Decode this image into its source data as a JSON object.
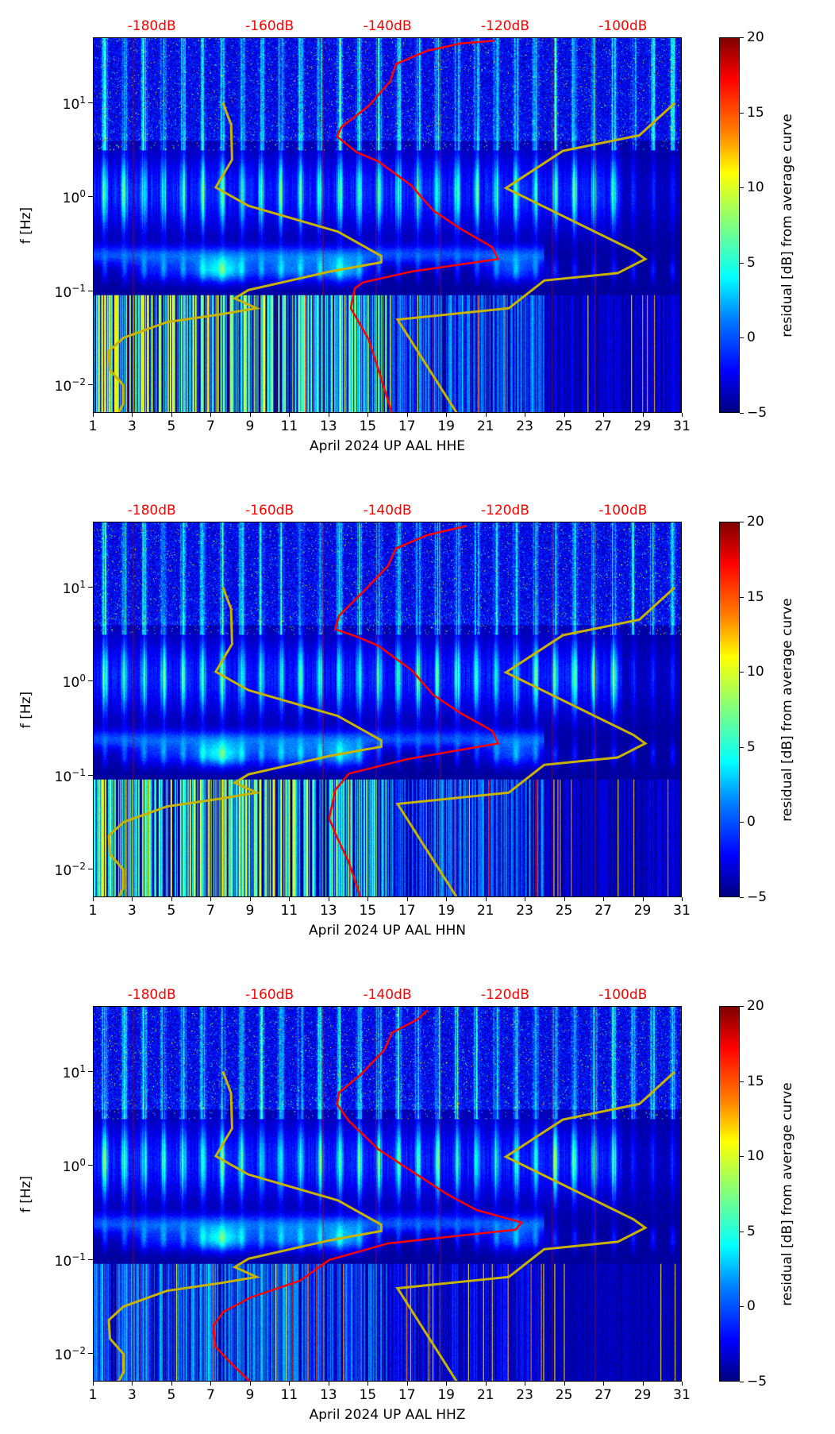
{
  "chart_data": [
    {
      "type": "heatmap",
      "xlabel": "April 2024 UP AAL  HHE",
      "ylabel": "f [Hz]",
      "colorbar_label": "residual [dB] from average curve",
      "top_axis_ticks": [
        "-180dB",
        "-160dB",
        "-140dB",
        "-120dB",
        "-100dB"
      ],
      "x_ticks": [
        "1",
        "3",
        "5",
        "7",
        "9",
        "11",
        "13",
        "15",
        "17",
        "19",
        "21",
        "23",
        "25",
        "27",
        "29",
        "31"
      ],
      "y_ticks": [
        "10^-2",
        "10^-1",
        "10^0",
        "10^1"
      ],
      "colorbar_ticks": [
        "-5",
        "0",
        "5",
        "10",
        "15",
        "20"
      ],
      "xlim": [
        1,
        31
      ],
      "ylim": [
        0.005,
        49
      ],
      "clim": [
        -5,
        20
      ],
      "red_curve": {
        "x_day": [
          16.2,
          15.5,
          15.0,
          14.1,
          14.3,
          14.7,
          17.2,
          21.6,
          21.3,
          19.7,
          18.3,
          17.2,
          15.5,
          14.4,
          13.4,
          13.6,
          15.0,
          16.1,
          16.4,
          18.0,
          19.7,
          21.4
        ],
        "f_hz": [
          0.005,
          0.0148,
          0.031,
          0.066,
          0.107,
          0.124,
          0.162,
          0.22,
          0.295,
          0.46,
          0.72,
          1.32,
          2.4,
          3.0,
          4.4,
          5.5,
          9.3,
          17,
          26,
          36,
          43,
          46
        ]
      },
      "seed": 1
    },
    {
      "type": "heatmap",
      "xlabel": "April 2024 UP AAL  HHN",
      "ylabel": "f [Hz]",
      "colorbar_label": "residual [dB] from average curve",
      "top_axis_ticks": [
        "-180dB",
        "-160dB",
        "-140dB",
        "-120dB",
        "-100dB"
      ],
      "x_ticks": [
        "1",
        "3",
        "5",
        "7",
        "9",
        "11",
        "13",
        "15",
        "17",
        "19",
        "21",
        "23",
        "25",
        "27",
        "29",
        "31"
      ],
      "y_ticks": [
        "10^-2",
        "10^-1",
        "10^0",
        "10^1"
      ],
      "colorbar_ticks": [
        "-5",
        "0",
        "5",
        "10",
        "15",
        "20"
      ],
      "xlim": [
        1,
        31
      ],
      "ylim": [
        0.005,
        49
      ],
      "clim": [
        -5,
        20
      ],
      "red_curve": {
        "x_day": [
          14.6,
          14.0,
          13.4,
          13.0,
          13.3,
          14.0,
          17.0,
          21.6,
          21.3,
          19.7,
          18.3,
          17.2,
          15.5,
          14.4,
          13.3,
          13.5,
          14.8,
          16.0,
          16.4,
          18.0,
          20.0
        ],
        "f_hz": [
          0.005,
          0.012,
          0.022,
          0.035,
          0.07,
          0.105,
          0.15,
          0.22,
          0.3,
          0.46,
          0.72,
          1.32,
          2.4,
          3.0,
          3.6,
          5.0,
          9.3,
          17,
          26,
          36,
          45
        ]
      },
      "seed": 2
    },
    {
      "type": "heatmap",
      "xlabel": "April 2024 UP AAL  HHZ",
      "ylabel": "f [Hz]",
      "colorbar_label": "residual [dB] from average curve",
      "top_axis_ticks": [
        "-180dB",
        "-160dB",
        "-140dB",
        "-120dB",
        "-100dB"
      ],
      "x_ticks": [
        "1",
        "3",
        "5",
        "7",
        "9",
        "11",
        "13",
        "15",
        "17",
        "19",
        "21",
        "23",
        "25",
        "27",
        "29",
        "31"
      ],
      "y_ticks": [
        "10^-2",
        "10^-1",
        "10^0",
        "10^1"
      ],
      "colorbar_ticks": [
        "-5",
        "0",
        "5",
        "10",
        "15",
        "20"
      ],
      "xlim": [
        1,
        31
      ],
      "ylim": [
        0.005,
        49
      ],
      "clim": [
        -5,
        20
      ],
      "red_curve": {
        "x_day": [
          9.0,
          8.0,
          7.2,
          7.1,
          7.6,
          9.0,
          11.5,
          13.0,
          16.0,
          22.5,
          22.8,
          20.5,
          19.0,
          17.5,
          15.5,
          14.0,
          13.4,
          13.5,
          14.6,
          15.8,
          16.2,
          17.5,
          18.0
        ],
        "f_hz": [
          0.005,
          0.008,
          0.012,
          0.02,
          0.028,
          0.04,
          0.06,
          0.1,
          0.15,
          0.21,
          0.25,
          0.34,
          0.5,
          0.8,
          1.5,
          3.0,
          4.5,
          6.0,
          9.3,
          17,
          26,
          36,
          45
        ]
      },
      "seed": 3
    }
  ],
  "yellow_curves": {
    "low": {
      "x_day": [
        7.58,
        8.0,
        8.05,
        7.22,
        8.88,
        13.44,
        15.65,
        15.65,
        13.03,
        8.88,
        8.19,
        9.3,
        7.5,
        4.73,
        2.52,
        1.77,
        1.83,
        2.52,
        2.52,
        2.24
      ],
      "f_hz": [
        10.1,
        5.9,
        2.5,
        1.27,
        0.81,
        0.43,
        0.237,
        0.203,
        0.162,
        0.103,
        0.084,
        0.066,
        0.057,
        0.047,
        0.032,
        0.023,
        0.0146,
        0.01,
        0.0064,
        0.005
      ]
    },
    "high": {
      "x_day": [
        30.6,
        28.8,
        24.9,
        22.0,
        28.5,
        29.1,
        27.7,
        23.95,
        22.15,
        16.48,
        19.52
      ],
      "f_hz": [
        10.0,
        4.55,
        3.1,
        1.25,
        0.27,
        0.22,
        0.156,
        0.13,
        0.066,
        0.05,
        0.005
      ]
    }
  },
  "colors": {
    "red_curve": "#ff0000",
    "yellow_curve": "#c8b400",
    "db_labels": "#ff0000"
  }
}
